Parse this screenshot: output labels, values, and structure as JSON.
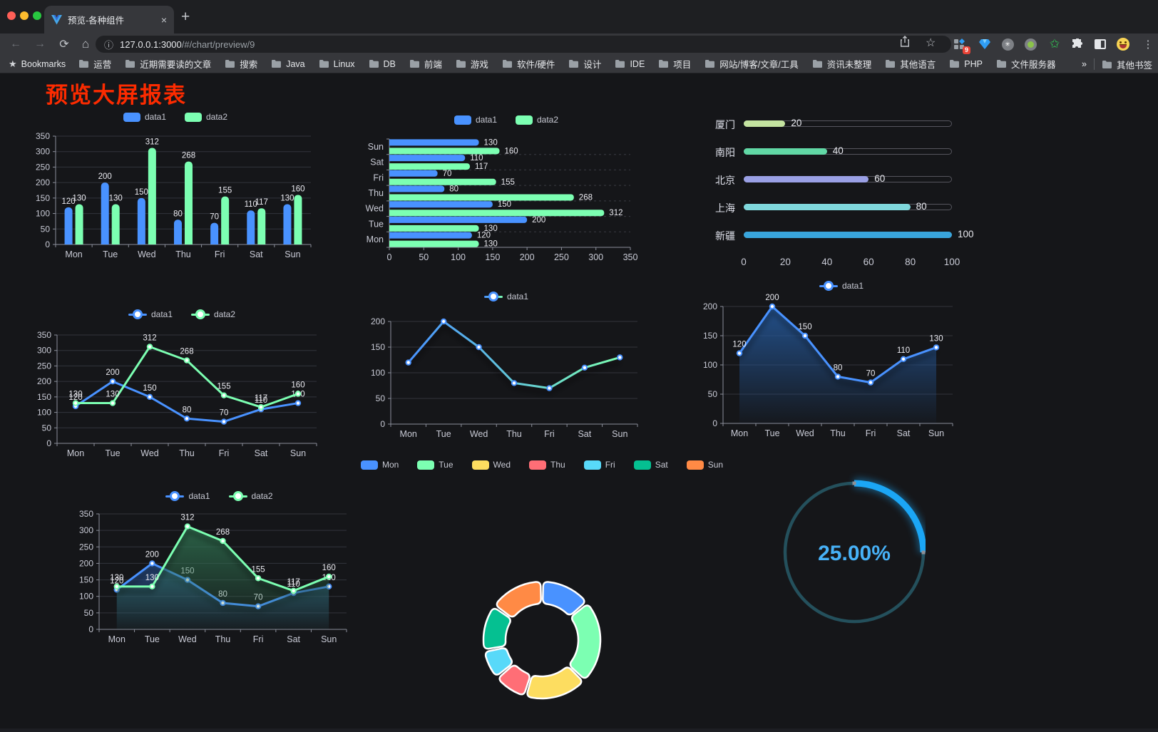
{
  "browser": {
    "tab_title": "预览-各种组件",
    "tab_close": "×",
    "new_tab": "+",
    "url_host": "127.0.0.1:3000",
    "url_path": "/#/chart/preview/9",
    "info_icon": "ⓘ",
    "star_icon": "☆",
    "menu_dots": "⋮",
    "back": "←",
    "forward": "→",
    "reload": "⟳",
    "home": "⌂",
    "extension_badge": "9",
    "bookmarks_label": "Bookmarks",
    "bookmarks": [
      "运营",
      "近期需要读的文章",
      "搜索",
      "Java",
      "Linux",
      "DB",
      "前端",
      "游戏",
      "软件/硬件",
      "设计",
      "IDE",
      "项目",
      "网站/博客/文章/工具",
      "资讯未整理",
      "其他语言",
      "PHP",
      "文件服务器"
    ],
    "bookmarks_overflow": "»",
    "other_bookmarks": "其他书签"
  },
  "page": {
    "title": "预览大屏报表"
  },
  "chart_data": [
    {
      "type": "bar",
      "categories": [
        "Mon",
        "Tue",
        "Wed",
        "Thu",
        "Fri",
        "Sat",
        "Sun"
      ],
      "series": [
        {
          "name": "data1",
          "color": "#4992ff",
          "values": [
            120,
            200,
            150,
            80,
            70,
            110,
            130
          ]
        },
        {
          "name": "data2",
          "color": "#7cffb2",
          "values": [
            130,
            130,
            312,
            268,
            155,
            117,
            160
          ]
        }
      ],
      "ylim": [
        0,
        350
      ],
      "ytick": 50,
      "legend_position": "top",
      "value_labels": true,
      "grid": true
    },
    {
      "type": "bar-horizontal",
      "categories": [
        "Mon",
        "Tue",
        "Wed",
        "Thu",
        "Fri",
        "Sat",
        "Sun"
      ],
      "display_order": "Sun-first-top",
      "series": [
        {
          "name": "data1",
          "color": "#4992ff",
          "values": [
            120,
            200,
            150,
            80,
            70,
            110,
            130
          ]
        },
        {
          "name": "data2",
          "color": "#7cffb2",
          "values": [
            130,
            130,
            312,
            268,
            155,
            117,
            160
          ]
        }
      ],
      "xlim": [
        0,
        350
      ],
      "xtick": 50,
      "legend_position": "top",
      "value_labels": true
    },
    {
      "type": "progress-bars",
      "max": 100,
      "axis_ticks": [
        0,
        20,
        40,
        60,
        80,
        100
      ],
      "rows": [
        {
          "label": "厦门",
          "value": 20,
          "color": "#c4e3a0"
        },
        {
          "label": "南阳",
          "value": 40,
          "color": "#61d8a5"
        },
        {
          "label": "北京",
          "value": 60,
          "color": "#9aa0e5"
        },
        {
          "label": "上海",
          "value": 80,
          "color": "#7fd8dc"
        },
        {
          "label": "新疆",
          "value": 100,
          "color": "#39a5dc"
        }
      ]
    },
    {
      "type": "line",
      "categories": [
        "Mon",
        "Tue",
        "Wed",
        "Thu",
        "Fri",
        "Sat",
        "Sun"
      ],
      "series": [
        {
          "name": "data1",
          "color": "#4992ff",
          "values": [
            120,
            200,
            150,
            80,
            70,
            110,
            130
          ]
        },
        {
          "name": "data2",
          "color": "#7cffb2",
          "values": [
            130,
            130,
            312,
            268,
            155,
            117,
            160
          ]
        }
      ],
      "ylim": [
        0,
        350
      ],
      "ytick": 50,
      "legend_position": "top",
      "value_labels": true,
      "markers": true
    },
    {
      "type": "line",
      "categories": [
        "Mon",
        "Tue",
        "Wed",
        "Thu",
        "Fri",
        "Sat",
        "Sun"
      ],
      "series": [
        {
          "name": "data1",
          "color": "#4992ff",
          "gradient": [
            "#4992ff",
            "#7cffb2"
          ],
          "values": [
            120,
            200,
            150,
            80,
            70,
            110,
            130
          ]
        }
      ],
      "ylim": [
        0,
        200
      ],
      "ytick": 50,
      "legend_position": "top",
      "value_labels": false,
      "markers": true,
      "line_shadow": true
    },
    {
      "type": "area",
      "categories": [
        "Mon",
        "Tue",
        "Wed",
        "Thu",
        "Fri",
        "Sat",
        "Sun"
      ],
      "series": [
        {
          "name": "data1",
          "color": "#4992ff",
          "area_from": "rgba(36,86,150,0.9)",
          "area_to": "rgba(36,86,150,0.04)",
          "values": [
            120,
            200,
            150,
            80,
            70,
            110,
            130
          ]
        }
      ],
      "ylim": [
        0,
        200
      ],
      "ytick": 50,
      "legend_position": "top",
      "value_labels": true,
      "markers": true,
      "line_shadow": true
    },
    {
      "type": "area",
      "categories": [
        "Mon",
        "Tue",
        "Wed",
        "Thu",
        "Fri",
        "Sat",
        "Sun"
      ],
      "series": [
        {
          "name": "data1",
          "color": "#4992ff",
          "area_from": "rgba(40,80,140,0.8)",
          "area_to": "rgba(40,80,140,0.05)",
          "values": [
            120,
            200,
            150,
            80,
            70,
            110,
            130
          ]
        },
        {
          "name": "data2",
          "color": "#7cffb2",
          "area_from": "rgba(48,116,82,0.8)",
          "area_to": "rgba(48,116,82,0.05)",
          "values": [
            130,
            130,
            312,
            268,
            155,
            117,
            160
          ]
        }
      ],
      "ylim": [
        0,
        350
      ],
      "ytick": 50,
      "legend_position": "top",
      "value_labels": true,
      "markers": true,
      "line_shadow": true
    },
    {
      "type": "donut",
      "categories": [
        "Mon",
        "Tue",
        "Wed",
        "Thu",
        "Fri",
        "Sat",
        "Sun"
      ],
      "values": [
        120,
        200,
        150,
        80,
        70,
        110,
        130
      ],
      "colors": [
        "#4992ff",
        "#7cffb2",
        "#fddd60",
        "#ff6e76",
        "#58d9f9",
        "#05c091",
        "#ff8a45"
      ],
      "legend_position": "top"
    },
    {
      "type": "gauge",
      "value": 25,
      "max": 100,
      "display": "25.00%",
      "arc_color": "#1ba6f5",
      "track_color": "#24505c",
      "text_color": "#47b1f7"
    }
  ]
}
